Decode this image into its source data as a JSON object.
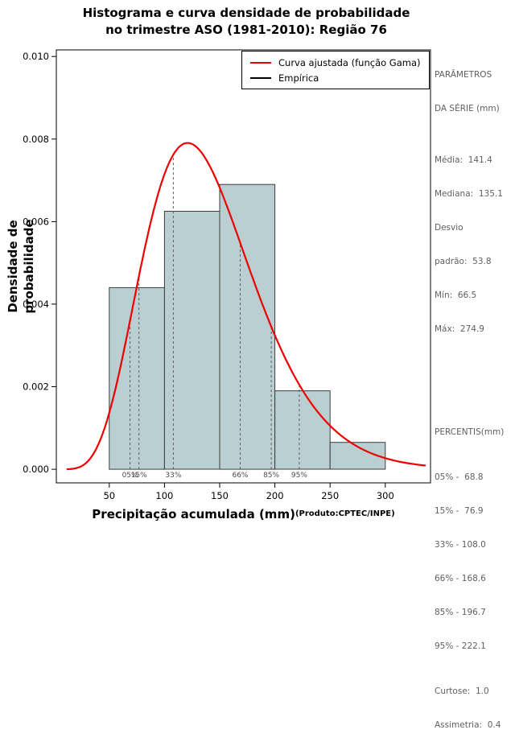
{
  "chart_data": {
    "type": "bar",
    "subtype": "histogram_with_density_curve",
    "title_line1": "Histograma e curva densidade de probabilidade",
    "title_line2": "no trimestre ASO (1981-2010): Região 76",
    "xlabel": "Precipitação acumulada (mm)",
    "xlabel_suffix": "(Produto:CPTEC/INPE)",
    "ylabel": "Densidade de probabilidade",
    "xlim": [
      2,
      341
    ],
    "ylim": [
      -0.00033,
      0.01016
    ],
    "x_ticks": [
      50,
      100,
      150,
      200,
      250,
      300
    ],
    "y_ticks": [
      0,
      0.002,
      0.004,
      0.006,
      0.008,
      0.01
    ],
    "y_tick_labels": [
      "0.000",
      "0.002",
      "0.004",
      "0.006",
      "0.008",
      "0.010"
    ],
    "grid": false,
    "histogram": {
      "bin_edges": [
        50,
        100,
        150,
        200,
        250,
        300
      ],
      "densities": [
        0.0044,
        0.00625,
        0.0069,
        0.0019,
        0.00065
      ]
    },
    "fitted_gamma": {
      "mean": 141.4,
      "sd": 53.8,
      "curve_x_range": [
        12,
        336
      ]
    },
    "percentile_markers": [
      {
        "label": "05%",
        "value": 68.8
      },
      {
        "label": "15%",
        "value": 76.9
      },
      {
        "label": "33%",
        "value": 108.0
      },
      {
        "label": "66%",
        "value": 168.6
      },
      {
        "label": "85%",
        "value": 196.7
      },
      {
        "label": "95%",
        "value": 222.1
      }
    ],
    "legend": [
      {
        "label": "Curva ajustada (função Gama)",
        "color": "#ee0000"
      },
      {
        "label": "Empírica",
        "color": "#000000"
      }
    ],
    "colors": {
      "bar_fill": "#b9cfd1",
      "bar_stroke": "#3c3c3c",
      "curve": "#ee0000",
      "dashed": "#5a5a5a",
      "percent_label": "#4a4a4a"
    },
    "legend_position": "top-right"
  },
  "right_panel": {
    "params_header1": "PARÂMETROS",
    "params_header2": "DA SÉRIE (mm)",
    "params_lines": [
      "Média:  141.4",
      "Mediana:  135.1",
      "Desvio",
      "padrão:  53.8",
      "Mín:  66.5",
      "Máx:  274.9"
    ],
    "percentis_header": "PERCENTIS(mm)",
    "percentis_lines": [
      "05% -  68.8",
      "15% -  76.9",
      "33% - 108.0",
      "66% - 168.6",
      "85% - 196.7",
      "95% - 222.1"
    ],
    "shape_lines": [
      "Curtose:  1.0",
      "Assimetria:  0.4"
    ]
  }
}
